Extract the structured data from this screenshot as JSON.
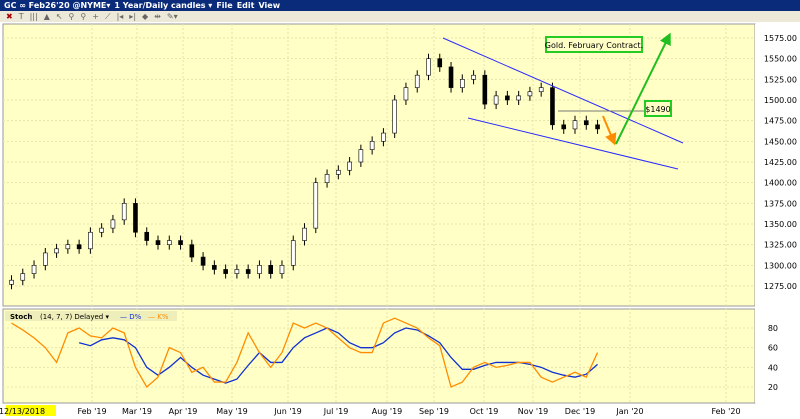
{
  "window": {
    "symbol": "GC ∞ Feb26'20 @NYME▾",
    "period": "1 Year/Daily candles ▾",
    "menus": [
      "File",
      "Edit",
      "View"
    ]
  },
  "toolbar": {
    "icons": [
      "close-icon",
      "text-icon",
      "bar-chart-icon",
      "area-chart-icon",
      "cursor-icon",
      "zoom-in-icon",
      "zoom-out-icon",
      "crosshair-icon",
      "trendline-icon",
      "pan-left-icon",
      "pan-right-icon",
      "fit-icon",
      "split-icon",
      "tools-icon"
    ]
  },
  "colors": {
    "background": "#ffffc6",
    "candle": "#000000",
    "trendline": "#2b2bff",
    "d_line": "#1030d0",
    "k_line": "#ff8c00",
    "up_arrow": "#1fbf1f",
    "down_arrow": "#ff8c00",
    "label_border": "#22cc22"
  },
  "chart_data": [
    {
      "type": "candlestick",
      "x_start": "2018-12-14",
      "x_step_days": 7,
      "ylim": [
        1260,
        1590
      ],
      "yticks": [
        "1575.00",
        "1550.00",
        "1525.00",
        "1500.00",
        "1475.00",
        "1450.00",
        "1425.00",
        "1400.00",
        "1375.00",
        "1350.00",
        "1325.00",
        "1300.00",
        "1275.00"
      ],
      "xticks": [
        "12/13/2018",
        "Feb '19",
        "Mar '19",
        "Apr '19",
        "May '19",
        "Jun '19",
        "Jul '19",
        "Aug '19",
        "Sep '19",
        "Oct '19",
        "Nov '19",
        "Dec '19",
        "Jan '20",
        "Feb '20"
      ],
      "closes": [
        1282,
        1290,
        1300,
        1315,
        1320,
        1325,
        1320,
        1340,
        1345,
        1355,
        1375,
        1340,
        1330,
        1325,
        1330,
        1325,
        1310,
        1300,
        1295,
        1290,
        1295,
        1290,
        1300,
        1290,
        1300,
        1330,
        1345,
        1400,
        1410,
        1415,
        1425,
        1440,
        1450,
        1460,
        1500,
        1515,
        1530,
        1550,
        1540,
        1515,
        1525,
        1530,
        1495,
        1505,
        1500,
        1505,
        1510,
        1515,
        1470,
        1465,
        1475,
        1470,
        1465
      ],
      "annotations": {
        "label": "Gold. February Contract.",
        "price_label": "$1490",
        "price_level": 1490
      }
    },
    {
      "type": "line",
      "title": "Stoch",
      "params": "(14, 7, 7) Delayed ▾",
      "ylim": [
        0,
        100
      ],
      "yticks": [
        "80",
        "60",
        "40",
        "20"
      ],
      "series": [
        {
          "name": "D%",
          "start_index": 6,
          "values": [
            65,
            62,
            68,
            70,
            68,
            60,
            40,
            32,
            40,
            50,
            40,
            32,
            28,
            24,
            28,
            42,
            55,
            45,
            45,
            60,
            70,
            75,
            80,
            75,
            65,
            60,
            60,
            65,
            75,
            80,
            78,
            72,
            65,
            50,
            38,
            38,
            42,
            45,
            45,
            45,
            43,
            40,
            35,
            32,
            30,
            33,
            43
          ]
        },
        {
          "name": "K%",
          "start_index": 0,
          "values": [
            85,
            78,
            70,
            60,
            45,
            75,
            80,
            72,
            70,
            80,
            75,
            40,
            20,
            30,
            60,
            55,
            35,
            40,
            25,
            25,
            45,
            75,
            55,
            40,
            55,
            85,
            80,
            85,
            80,
            70,
            60,
            55,
            55,
            85,
            90,
            85,
            80,
            70,
            62,
            20,
            25,
            40,
            45,
            40,
            42,
            45,
            45,
            30,
            25,
            30,
            35,
            30,
            55
          ]
        }
      ]
    }
  ]
}
